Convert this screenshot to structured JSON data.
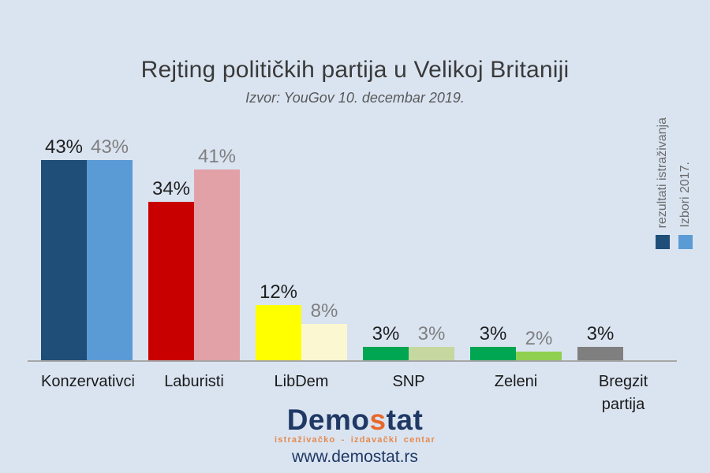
{
  "title": "Rejting političkih partija u Velikoj Britaniji",
  "subtitle": "Izvor: YouGov 10. decembar 2019.",
  "legend": {
    "items": [
      {
        "label": "rezultati istraživanja",
        "color": "#1f4e79"
      },
      {
        "label": "Izbori 2017.",
        "color": "#5b9bd5"
      }
    ]
  },
  "chart_data": {
    "type": "bar",
    "title": "Rejting političkih partija u Velikoj Britaniji",
    "subtitle": "Izvor: YouGov 10. decembar 2019.",
    "categories": [
      "Konzervativci",
      "Laburisti",
      "LibDem",
      "SNP",
      "Zeleni",
      "Bregzit partija"
    ],
    "series": [
      {
        "name": "rezultati istraživanja",
        "values": [
          43,
          34,
          12,
          3,
          3,
          3
        ],
        "colors": [
          "#1f4e79",
          "#c80000",
          "#ffff00",
          "#00a651",
          "#00a651",
          "#7f7f7f"
        ],
        "label_color": "#1f1f1f"
      },
      {
        "name": "Izbori 2017.",
        "values": [
          43,
          41,
          8,
          3,
          2,
          null
        ],
        "colors": [
          "#5b9bd5",
          "#e2a1a7",
          "#fbf7d0",
          "#c6d89f",
          "#8fd050",
          null
        ],
        "label_color": "#7f7f7f"
      }
    ],
    "value_suffix": "%",
    "ylim": [
      0,
      48
    ],
    "grid": false,
    "y_axis_visible": false,
    "legend_position": "right-vertical",
    "axis_line_color": "#a6a6a6",
    "background_color": "#dae4f1"
  },
  "footer": {
    "logo": {
      "part1": "Demo",
      "accent": "s",
      "part2": "tat",
      "tagline": "istraživačko - izdavački centar"
    },
    "website": "www.demostat.rs"
  }
}
